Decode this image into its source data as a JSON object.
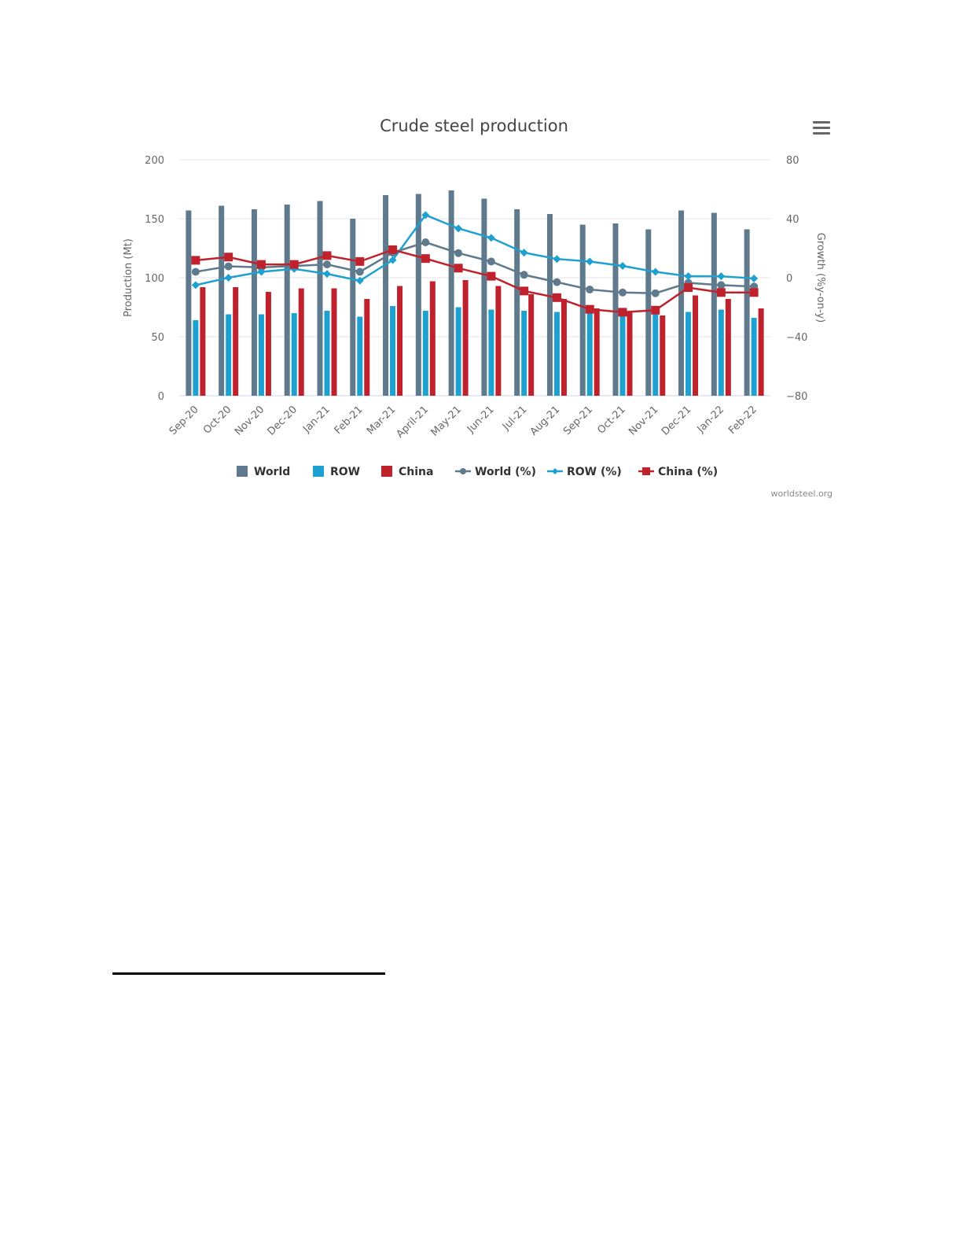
{
  "chart_data": {
    "type": "bar+line",
    "title": "Crude steel production",
    "ylabel": "Production (Mt)",
    "y2label": "Growth (%y-on-y)",
    "ylim": [
      0,
      200
    ],
    "y2lim": [
      -80,
      80
    ],
    "yticks": [
      0,
      50,
      100,
      150,
      200
    ],
    "y2ticks": [
      -80,
      -40,
      0,
      40,
      80
    ],
    "grid": true,
    "legend_position": "bottom",
    "credit": "worldsteel.org",
    "categories": [
      "Sep-20",
      "Oct-20",
      "Nov-20",
      "Dec-20",
      "Jan-21",
      "Feb-21",
      "Mar-21",
      "April-21",
      "May-21",
      "Jun-21",
      "Jul-21",
      "Aug-21",
      "Sep-21",
      "Oct-21",
      "Nov-21",
      "Dec-21",
      "Jan-22",
      "Feb-22"
    ],
    "bar_series": [
      {
        "name": "World",
        "color": "#5f7a8c",
        "axis": "left",
        "values": [
          157,
          161,
          158,
          162,
          165,
          150,
          170,
          171,
          174,
          167,
          158,
          154,
          145,
          146,
          141,
          157,
          155,
          141
        ]
      },
      {
        "name": "ROW",
        "color": "#1ea0d0",
        "axis": "left",
        "values": [
          64,
          69,
          69,
          70,
          72,
          67,
          76,
          72,
          75,
          73,
          72,
          71,
          70,
          69,
          69,
          71,
          73,
          66
        ]
      },
      {
        "name": "China",
        "color": "#c0222d",
        "axis": "left",
        "values": [
          92,
          92,
          88,
          91,
          91,
          82,
          93,
          97,
          98,
          93,
          86,
          82,
          74,
          71,
          68,
          85,
          82,
          74
        ]
      }
    ],
    "line_series": [
      {
        "name": "World (%)",
        "color": "#5f7a8c",
        "marker": "circle",
        "axis": "right",
        "values": [
          4,
          7.7,
          7,
          8,
          9,
          4,
          17,
          24,
          16.7,
          11,
          2,
          -3,
          -8,
          -10,
          -10.5,
          -3.5,
          -5,
          -6
        ]
      },
      {
        "name": "ROW (%)",
        "color": "#1ea0d0",
        "marker": "diamond",
        "axis": "right",
        "values": [
          -5,
          0,
          4,
          6,
          2.6,
          -2,
          12,
          42.5,
          33.4,
          27,
          17,
          12.7,
          11,
          8,
          4,
          1,
          1,
          -0.5
        ]
      },
      {
        "name": "China (%)",
        "color": "#c0222d",
        "marker": "square",
        "axis": "right",
        "values": [
          11.8,
          14,
          9,
          9,
          15,
          11,
          19,
          13,
          6.5,
          1,
          -9,
          -13.5,
          -21.4,
          -23.4,
          -22,
          -6.7,
          -10,
          -10
        ]
      }
    ]
  }
}
